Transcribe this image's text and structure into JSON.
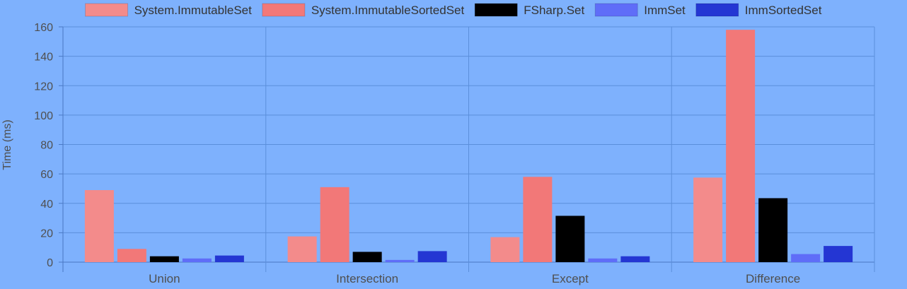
{
  "chart_data": {
    "type": "bar",
    "title": "",
    "xlabel": "",
    "ylabel": "Time (ms)",
    "ylim": [
      0,
      160
    ],
    "yticks": [
      0,
      20,
      40,
      60,
      80,
      100,
      120,
      140,
      160
    ],
    "grid": true,
    "legend_position": "top",
    "categories": [
      "Union",
      "Intersection",
      "Except",
      "Difference"
    ],
    "series": [
      {
        "name": "System.ImmutableSet",
        "color": "#f38b8b",
        "values": [
          49,
          17.5,
          17,
          57.5
        ]
      },
      {
        "name": "System.ImmutableSortedSet",
        "color": "#f27878",
        "values": [
          9,
          51,
          58,
          158
        ]
      },
      {
        "name": "FSharp.Set",
        "color": "#000000",
        "values": [
          4,
          7,
          31.5,
          43.5
        ]
      },
      {
        "name": "ImmSet",
        "color": "#5f6df8",
        "values": [
          2.5,
          1.5,
          2.5,
          5.5
        ]
      },
      {
        "name": "ImmSortedSet",
        "color": "#2436d3",
        "values": [
          4.5,
          7.5,
          4,
          11
        ]
      }
    ]
  },
  "colors": {
    "background": "#7eb1fd",
    "grid": "#5b8fdb",
    "axis": "#4a78c4"
  }
}
